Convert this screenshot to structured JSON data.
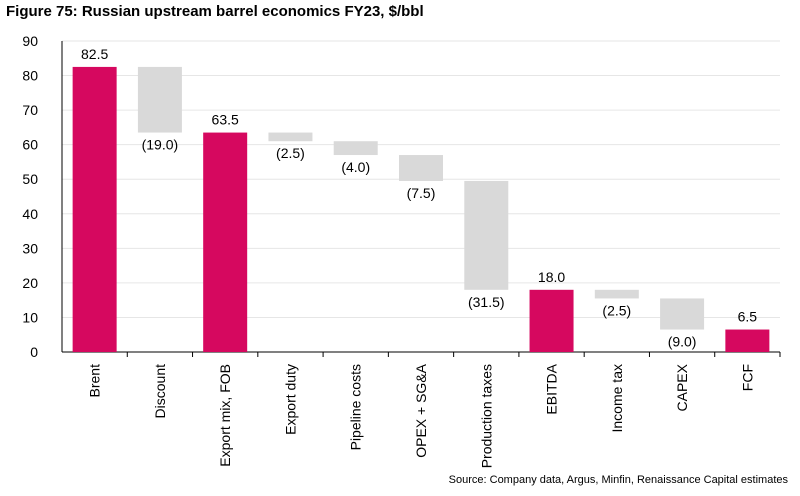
{
  "chart_data": {
    "type": "waterfall",
    "title": "Figure 75: Russian upstream barrel economics FY23, $/bbl",
    "ylim": [
      0,
      90
    ],
    "yticks": [
      0,
      10,
      20,
      30,
      40,
      50,
      60,
      70,
      80,
      90
    ],
    "grid": true,
    "categories": [
      "Brent",
      "Discount",
      "Export mix, FOB",
      "Export duty",
      "Pipeline costs",
      "OPEX + SG&A",
      "Production taxes",
      "EBITDA",
      "Income tax",
      "CAPEX",
      "FCF"
    ],
    "kinds": [
      "total",
      "delta",
      "total",
      "delta",
      "delta",
      "delta",
      "delta",
      "total",
      "delta",
      "delta",
      "total"
    ],
    "values": [
      82.5,
      -19.0,
      63.5,
      -2.5,
      -4.0,
      -7.5,
      -31.5,
      18.0,
      -2.5,
      -9.0,
      6.5
    ],
    "labels": [
      "82.5",
      "(19.0)",
      "63.5",
      "(2.5)",
      "(4.0)",
      "(7.5)",
      "(31.5)",
      "18.0",
      "(2.5)",
      "(9.0)",
      "6.5"
    ],
    "colors": {
      "total": "#d6085f",
      "delta": "#d9d9d9"
    },
    "source": "Source: Company data, Argus, Minfin, Renaissance Capital estimates"
  }
}
